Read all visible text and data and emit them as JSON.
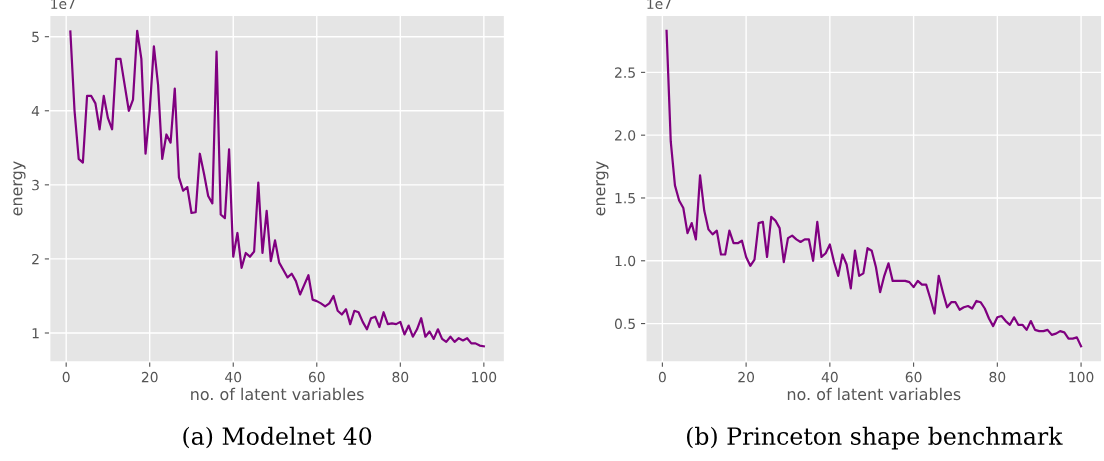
{
  "chart_data": [
    {
      "type": "line",
      "title": "(a) Modelnet 40",
      "xlabel": "no. of latent variables",
      "ylabel": "energy",
      "annotations": [
        "1e7"
      ],
      "color": "#800080",
      "grid": true,
      "line_style": "solid",
      "marker": "none",
      "xlim": [
        -3.95,
        104.95
      ],
      "xticks": [
        0,
        20,
        40,
        60,
        80,
        100
      ],
      "ylim": [
        0.61,
        5.29
      ],
      "yticks": [
        1,
        2,
        3,
        4,
        5
      ],
      "x": [
        1,
        2,
        3,
        4,
        5,
        6,
        7,
        8,
        9,
        10,
        11,
        12,
        13,
        14,
        15,
        16,
        17,
        18,
        19,
        20,
        21,
        22,
        23,
        24,
        25,
        26,
        27,
        28,
        29,
        30,
        31,
        32,
        33,
        34,
        35,
        36,
        37,
        38,
        39,
        40,
        41,
        42,
        43,
        44,
        45,
        46,
        47,
        48,
        49,
        50,
        51,
        52,
        53,
        54,
        55,
        56,
        57,
        58,
        59,
        60,
        61,
        62,
        63,
        64,
        65,
        66,
        67,
        68,
        69,
        70,
        71,
        72,
        73,
        74,
        75,
        76,
        77,
        78,
        79,
        80,
        81,
        82,
        83,
        84,
        85,
        86,
        87,
        88,
        89,
        90,
        91,
        92,
        93,
        94,
        95,
        96,
        97,
        98,
        99,
        100
      ],
      "values": [
        5.07,
        4.0,
        3.35,
        3.3,
        4.2,
        4.2,
        4.1,
        3.75,
        4.2,
        3.9,
        3.75,
        4.7,
        4.7,
        4.35,
        4.0,
        4.15,
        5.08,
        4.7,
        3.42,
        4.0,
        4.87,
        4.35,
        3.35,
        3.68,
        3.57,
        4.3,
        3.1,
        2.92,
        2.97,
        2.62,
        2.63,
        3.42,
        3.15,
        2.85,
        2.75,
        4.8,
        2.6,
        2.55,
        3.48,
        2.03,
        2.35,
        1.88,
        2.08,
        2.03,
        2.1,
        3.03,
        2.08,
        2.65,
        1.97,
        2.25,
        1.95,
        1.85,
        1.75,
        1.8,
        1.7,
        1.52,
        1.65,
        1.78,
        1.45,
        1.43,
        1.4,
        1.36,
        1.4,
        1.5,
        1.3,
        1.25,
        1.32,
        1.12,
        1.3,
        1.28,
        1.15,
        1.05,
        1.2,
        1.22,
        1.08,
        1.28,
        1.12,
        1.13,
        1.12,
        1.15,
        0.98,
        1.1,
        0.95,
        1.05,
        1.2,
        0.95,
        1.02,
        0.92,
        1.05,
        0.92,
        0.88,
        0.95,
        0.88,
        0.93,
        0.9,
        0.93,
        0.86,
        0.86,
        0.83,
        0.82
      ]
    },
    {
      "type": "line",
      "title": "(b) Princeton shape benchmark",
      "xlabel": "no. of latent variables",
      "ylabel": "energy",
      "annotations": [
        "1e7"
      ],
      "color": "#800080",
      "grid": true,
      "line_style": "solid",
      "marker": "none",
      "xlim": [
        -3.95,
        104.95
      ],
      "xticks": [
        0,
        20,
        40,
        60,
        80,
        100
      ],
      "ylim": [
        0.195,
        2.955
      ],
      "yticks": [
        {
          "value": 0.5,
          "label": "0.5"
        },
        {
          "value": 1.0,
          "label": "1.0"
        },
        {
          "value": 1.5,
          "label": "1.5"
        },
        {
          "value": 2.0,
          "label": "2.0"
        },
        {
          "value": 2.5,
          "label": "2.5"
        }
      ],
      "x": [
        1,
        2,
        3,
        4,
        5,
        6,
        7,
        8,
        9,
        10,
        11,
        12,
        13,
        14,
        15,
        16,
        17,
        18,
        19,
        20,
        21,
        22,
        23,
        24,
        25,
        26,
        27,
        28,
        29,
        30,
        31,
        32,
        33,
        34,
        35,
        36,
        37,
        38,
        39,
        40,
        41,
        42,
        43,
        44,
        45,
        46,
        47,
        48,
        49,
        50,
        51,
        52,
        53,
        54,
        55,
        56,
        57,
        58,
        59,
        60,
        61,
        62,
        63,
        64,
        65,
        66,
        67,
        68,
        69,
        70,
        71,
        72,
        73,
        74,
        75,
        76,
        77,
        78,
        79,
        80,
        81,
        82,
        83,
        84,
        85,
        86,
        87,
        88,
        89,
        90,
        91,
        92,
        93,
        94,
        95,
        96,
        97,
        98,
        99,
        100
      ],
      "values": [
        2.83,
        1.95,
        1.6,
        1.48,
        1.42,
        1.22,
        1.3,
        1.17,
        1.68,
        1.4,
        1.25,
        1.21,
        1.24,
        1.05,
        1.05,
        1.24,
        1.14,
        1.14,
        1.16,
        1.03,
        0.96,
        1.01,
        1.3,
        1.31,
        1.03,
        1.35,
        1.32,
        1.26,
        0.99,
        1.18,
        1.2,
        1.17,
        1.15,
        1.17,
        1.17,
        1.0,
        1.31,
        1.03,
        1.06,
        1.13,
        0.99,
        0.88,
        1.05,
        0.97,
        0.78,
        1.08,
        0.88,
        0.9,
        1.1,
        1.08,
        0.95,
        0.75,
        0.88,
        0.98,
        0.84,
        0.84,
        0.84,
        0.84,
        0.83,
        0.79,
        0.84,
        0.81,
        0.81,
        0.7,
        0.58,
        0.88,
        0.75,
        0.63,
        0.67,
        0.67,
        0.61,
        0.63,
        0.64,
        0.62,
        0.68,
        0.67,
        0.62,
        0.54,
        0.48,
        0.55,
        0.56,
        0.52,
        0.49,
        0.55,
        0.49,
        0.49,
        0.45,
        0.52,
        0.45,
        0.44,
        0.44,
        0.45,
        0.41,
        0.42,
        0.44,
        0.43,
        0.38,
        0.38,
        0.39,
        0.32
      ]
    }
  ]
}
